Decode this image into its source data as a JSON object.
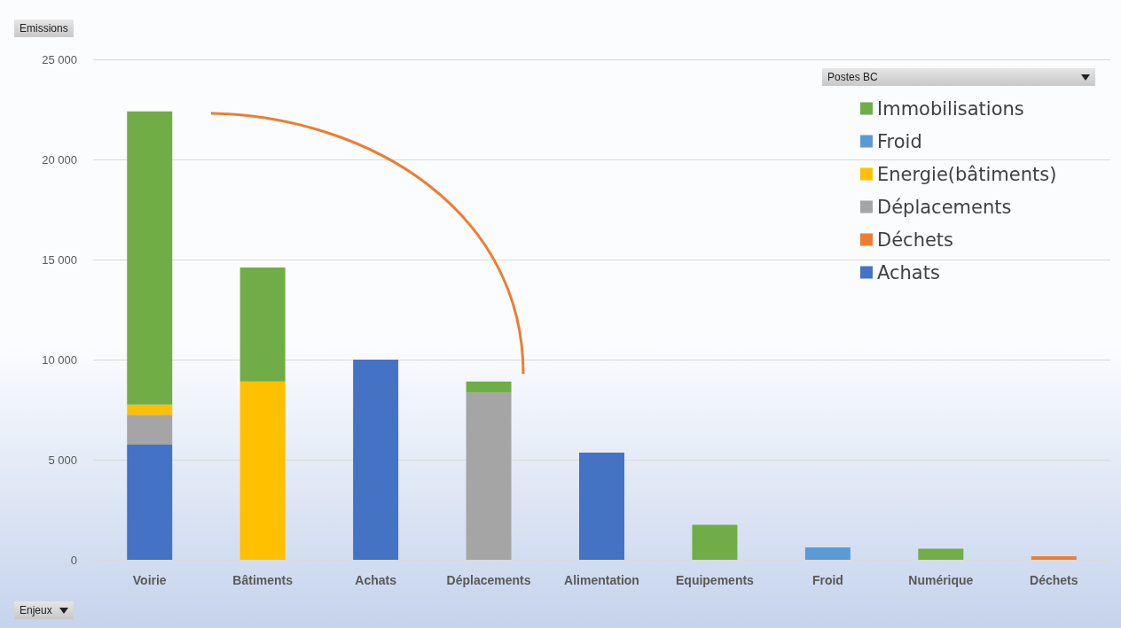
{
  "chart_data": {
    "type": "bar",
    "stacked": true,
    "ylabel": "Emissions",
    "xlabel": "Enjeux",
    "legend_title": "Postes BC",
    "categories": [
      "Voirie",
      "Bâtiments",
      "Achats",
      "Déplacements",
      "Alimentation",
      "Equipements",
      "Froid",
      "Numérique",
      "Déchets"
    ],
    "series": [
      {
        "name": "Achats",
        "color": "#4472c4",
        "values": [
          5750,
          null,
          10000,
          null,
          5350,
          null,
          null,
          null,
          null
        ]
      },
      {
        "name": "Déchets",
        "color": "#ed7d31",
        "values": [
          null,
          null,
          null,
          null,
          null,
          null,
          null,
          null,
          180
        ]
      },
      {
        "name": "Déplacements",
        "color": "#a5a5a5",
        "values": [
          1500,
          null,
          null,
          8350,
          null,
          null,
          null,
          null,
          null
        ]
      },
      {
        "name": "Energie(bâtiments)",
        "color": "#ffc000",
        "values": [
          500,
          8900,
          null,
          null,
          null,
          null,
          null,
          null,
          null
        ]
      },
      {
        "name": "Froid",
        "color": "#5b9bd5",
        "values": [
          null,
          null,
          null,
          null,
          null,
          null,
          620,
          null,
          null
        ]
      },
      {
        "name": "Immobilisations",
        "color": "#70ad47",
        "values": [
          14650,
          5700,
          null,
          550,
          null,
          1750,
          null,
          550,
          null
        ]
      }
    ],
    "ylim": [
      0,
      25000
    ],
    "yticks": [
      0,
      {
        "value": 5000,
        "label": "5 000"
      },
      {
        "value": 10000,
        "label": "10 000"
      },
      {
        "value": 15000,
        "label": "15 000"
      },
      {
        "value": 20000,
        "label": "20 000"
      },
      {
        "value": 25000,
        "label": "25 000"
      }
    ],
    "grid": "y",
    "legend": "top right"
  }
}
